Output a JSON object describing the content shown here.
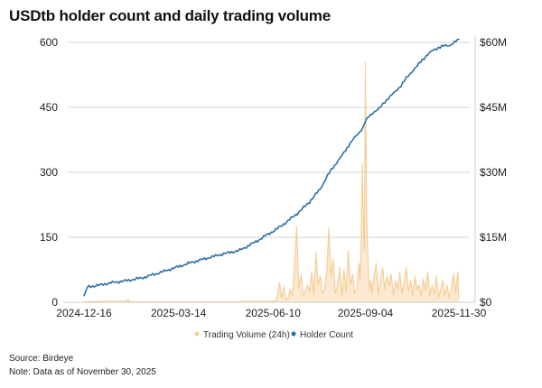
{
  "title": "USDtb holder count and daily trading volume",
  "footer": {
    "source": "Source: Birdeye",
    "note": "Note: Data as of November 30, 2025"
  },
  "colors": {
    "holder": "#2f6fa7",
    "volume": "#f6cf9a",
    "grid": "#d6d6d6",
    "axis": "#cfcfcf"
  },
  "chart_data": {
    "type": "line",
    "title": "USDtb holder count and daily trading volume",
    "xlabel": "",
    "ylabel_left": "",
    "ylabel_right": "",
    "grid": "horizontal",
    "legend_position": "bottom-center",
    "x_range": [
      "2024-12-16",
      "2025-11-30"
    ],
    "x_ticks": [
      "2024-12-16",
      "2025-03-14",
      "2025-06-10",
      "2025-09-04",
      "2025-11-30"
    ],
    "x_tick_days": [
      0,
      88,
      176,
      262,
      349
    ],
    "y_left": {
      "ticks": [
        0,
        150,
        300,
        450,
        600
      ],
      "labels": [
        "0",
        "150",
        "300",
        "450",
        "600"
      ],
      "lim": [
        0,
        600
      ]
    },
    "y_right": {
      "ticks": [
        0,
        15,
        30,
        45,
        60
      ],
      "labels": [
        "$0",
        "$15M",
        "$30M",
        "$45M",
        "$60M"
      ],
      "lim": [
        0,
        60
      ],
      "unit": "USD millions"
    },
    "series": [
      {
        "name": "Trading Volume (24h)",
        "axis": "right",
        "kind": "area",
        "day_offsets": [
          0,
          20,
          35,
          40,
          41,
          42,
          50,
          60,
          70,
          80,
          90,
          100,
          110,
          120,
          130,
          140,
          150,
          160,
          170,
          178,
          180,
          182,
          184,
          186,
          188,
          190,
          192,
          194,
          196,
          198,
          200,
          202,
          204,
          206,
          208,
          210,
          212,
          214,
          216,
          218,
          220,
          222,
          224,
          226,
          228,
          230,
          232,
          234,
          236,
          238,
          240,
          242,
          244,
          246,
          248,
          250,
          252,
          254,
          256,
          257,
          258,
          259,
          260,
          261,
          262,
          263,
          264,
          265,
          266,
          267,
          268,
          270,
          272,
          274,
          276,
          278,
          280,
          282,
          284,
          286,
          288,
          290,
          292,
          294,
          296,
          298,
          300,
          302,
          304,
          306,
          308,
          310,
          312,
          314,
          316,
          318,
          320,
          322,
          324,
          326,
          328,
          330,
          332,
          334,
          336,
          338,
          340,
          342,
          344,
          346,
          348,
          349
        ],
        "values": [
          0.1,
          0.2,
          0.2,
          0.3,
          0.8,
          0.2,
          0.1,
          0.1,
          0.1,
          0.1,
          0.1,
          0.1,
          0.1,
          0.1,
          0.1,
          0.1,
          0.2,
          0.2,
          0.2,
          0.3,
          1.5,
          4.5,
          1.0,
          3.5,
          0.5,
          1.0,
          3.0,
          1.5,
          8.5,
          17.5,
          3.0,
          6.5,
          1.5,
          2.5,
          4.0,
          2.5,
          7.0,
          1.5,
          11.5,
          4.0,
          6.0,
          2.0,
          3.0,
          7.0,
          17.0,
          6.0,
          10.0,
          2.0,
          4.0,
          8.0,
          1.5,
          7.5,
          2.5,
          12.0,
          4.0,
          6.5,
          2.0,
          3.0,
          9.0,
          5.0,
          13.0,
          32.0,
          19.0,
          12.0,
          55.5,
          22.0,
          13.0,
          6.0,
          3.0,
          5.0,
          2.0,
          6.0,
          9.0,
          2.0,
          5.0,
          8.0,
          3.0,
          6.0,
          4.0,
          6.5,
          1.5,
          5.0,
          3.0,
          7.0,
          2.0,
          4.5,
          8.0,
          2.5,
          5.0,
          1.5,
          6.0,
          3.0,
          4.0,
          1.5,
          5.5,
          2.5,
          7.0,
          1.5,
          4.0,
          2.0,
          6.0,
          1.0,
          3.0,
          5.0,
          1.5,
          4.0,
          1.0,
          3.5,
          6.5,
          2.0,
          7.0,
          1.0
        ]
      },
      {
        "name": "Holder Count",
        "axis": "left",
        "kind": "line",
        "day_offsets": [
          0,
          3,
          8,
          15,
          25,
          40,
          55,
          70,
          85,
          100,
          115,
          130,
          145,
          160,
          170,
          180,
          190,
          200,
          210,
          220,
          225,
          230,
          235,
          240,
          245,
          248,
          250,
          255,
          260,
          262,
          265,
          270,
          275,
          280,
          285,
          290,
          295,
          300,
          305,
          310,
          315,
          320,
          325,
          330,
          335,
          340,
          345,
          349
        ],
        "values": [
          15,
          35,
          37,
          40,
          45,
          50,
          57,
          68,
          80,
          92,
          102,
          112,
          120,
          140,
          155,
          170,
          188,
          208,
          232,
          262,
          285,
          305,
          322,
          338,
          357,
          368,
          375,
          388,
          405,
          417,
          428,
          440,
          447,
          463,
          475,
          487,
          500,
          517,
          532,
          545,
          560,
          572,
          582,
          588,
          592,
          593,
          600,
          607
        ]
      }
    ]
  }
}
